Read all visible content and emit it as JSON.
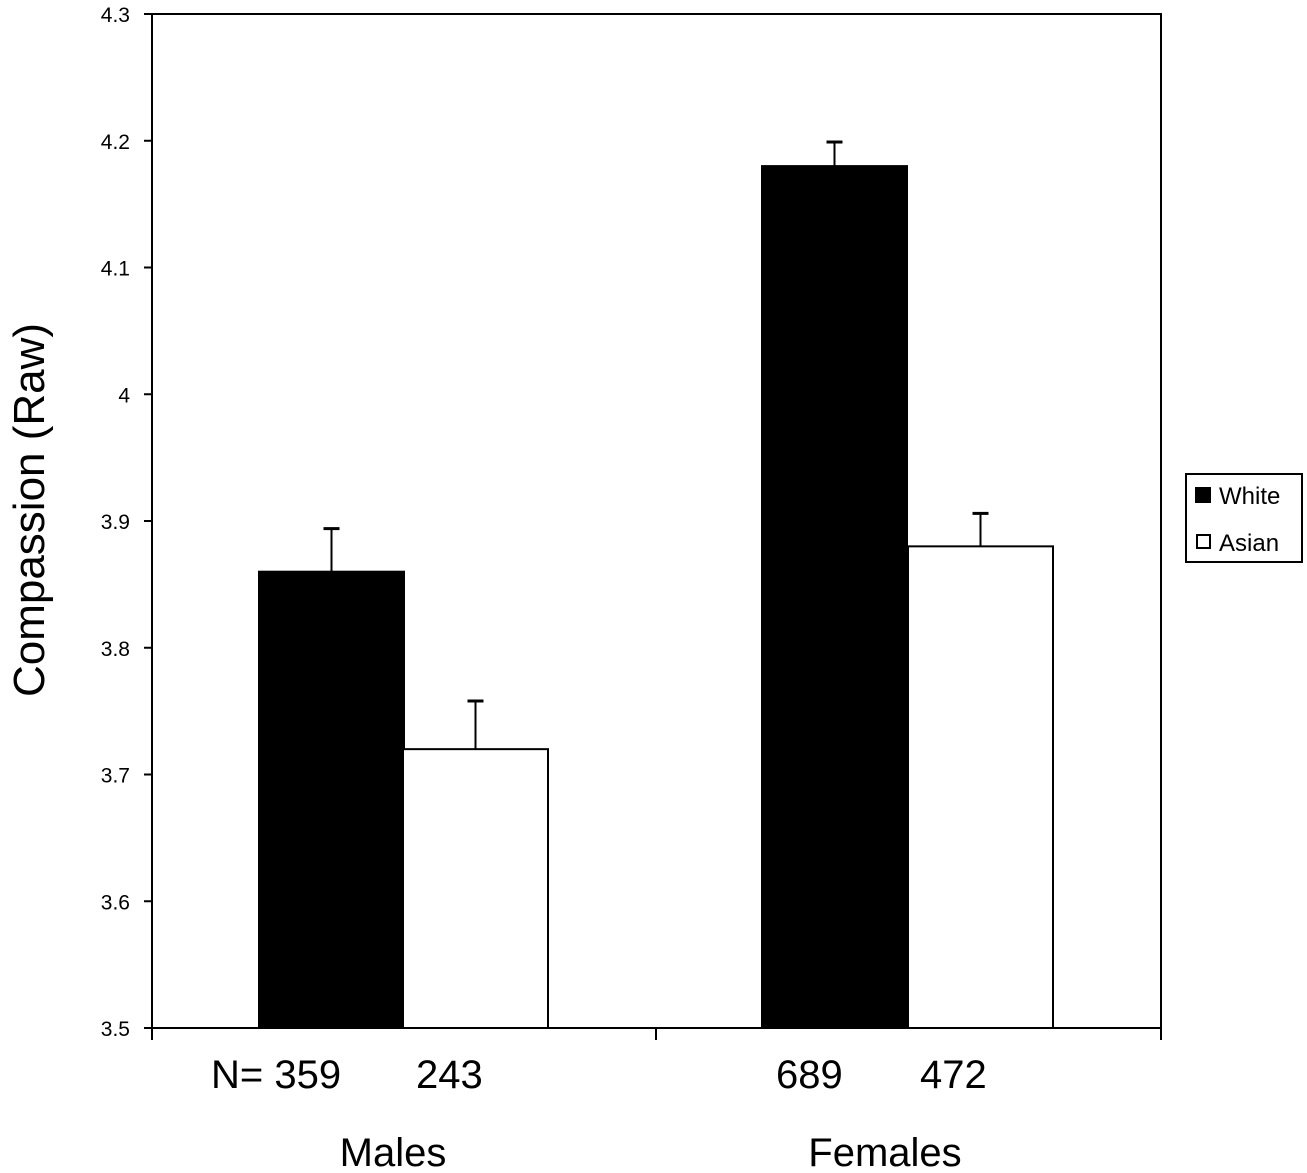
{
  "chart_data": {
    "type": "bar",
    "title": "",
    "xlabel": "",
    "ylabel": "Compassion (Raw)",
    "ylim": [
      3.5,
      4.3
    ],
    "yticks": [
      3.5,
      3.6,
      3.7,
      3.8,
      3.9,
      4,
      4.1,
      4.2,
      4.3
    ],
    "ytick_labels": [
      "3.5",
      "3.6",
      "3.7",
      "3.8",
      "3.9",
      "4",
      "4.1",
      "4.2",
      "4.3"
    ],
    "grid": false,
    "legend_position": "right",
    "categories": [
      "Males",
      "Females"
    ],
    "series": [
      {
        "name": "White",
        "color": "#000000",
        "values": [
          3.86,
          4.18
        ],
        "error_plus": [
          0.034,
          0.019
        ],
        "n": [
          359,
          689
        ]
      },
      {
        "name": "Asian",
        "color": "#ffffff",
        "values": [
          3.72,
          3.88
        ],
        "error_plus": [
          0.038,
          0.026
        ],
        "n": [
          243,
          472
        ]
      }
    ],
    "n_labels": [
      "N= 359",
      "243",
      "689",
      "472"
    ]
  },
  "legend": {
    "items": [
      {
        "label": "White",
        "swatch": "#000000"
      },
      {
        "label": "Asian",
        "swatch": "#ffffff"
      }
    ]
  },
  "axis": {
    "y_title": "Compassion (Raw)"
  }
}
